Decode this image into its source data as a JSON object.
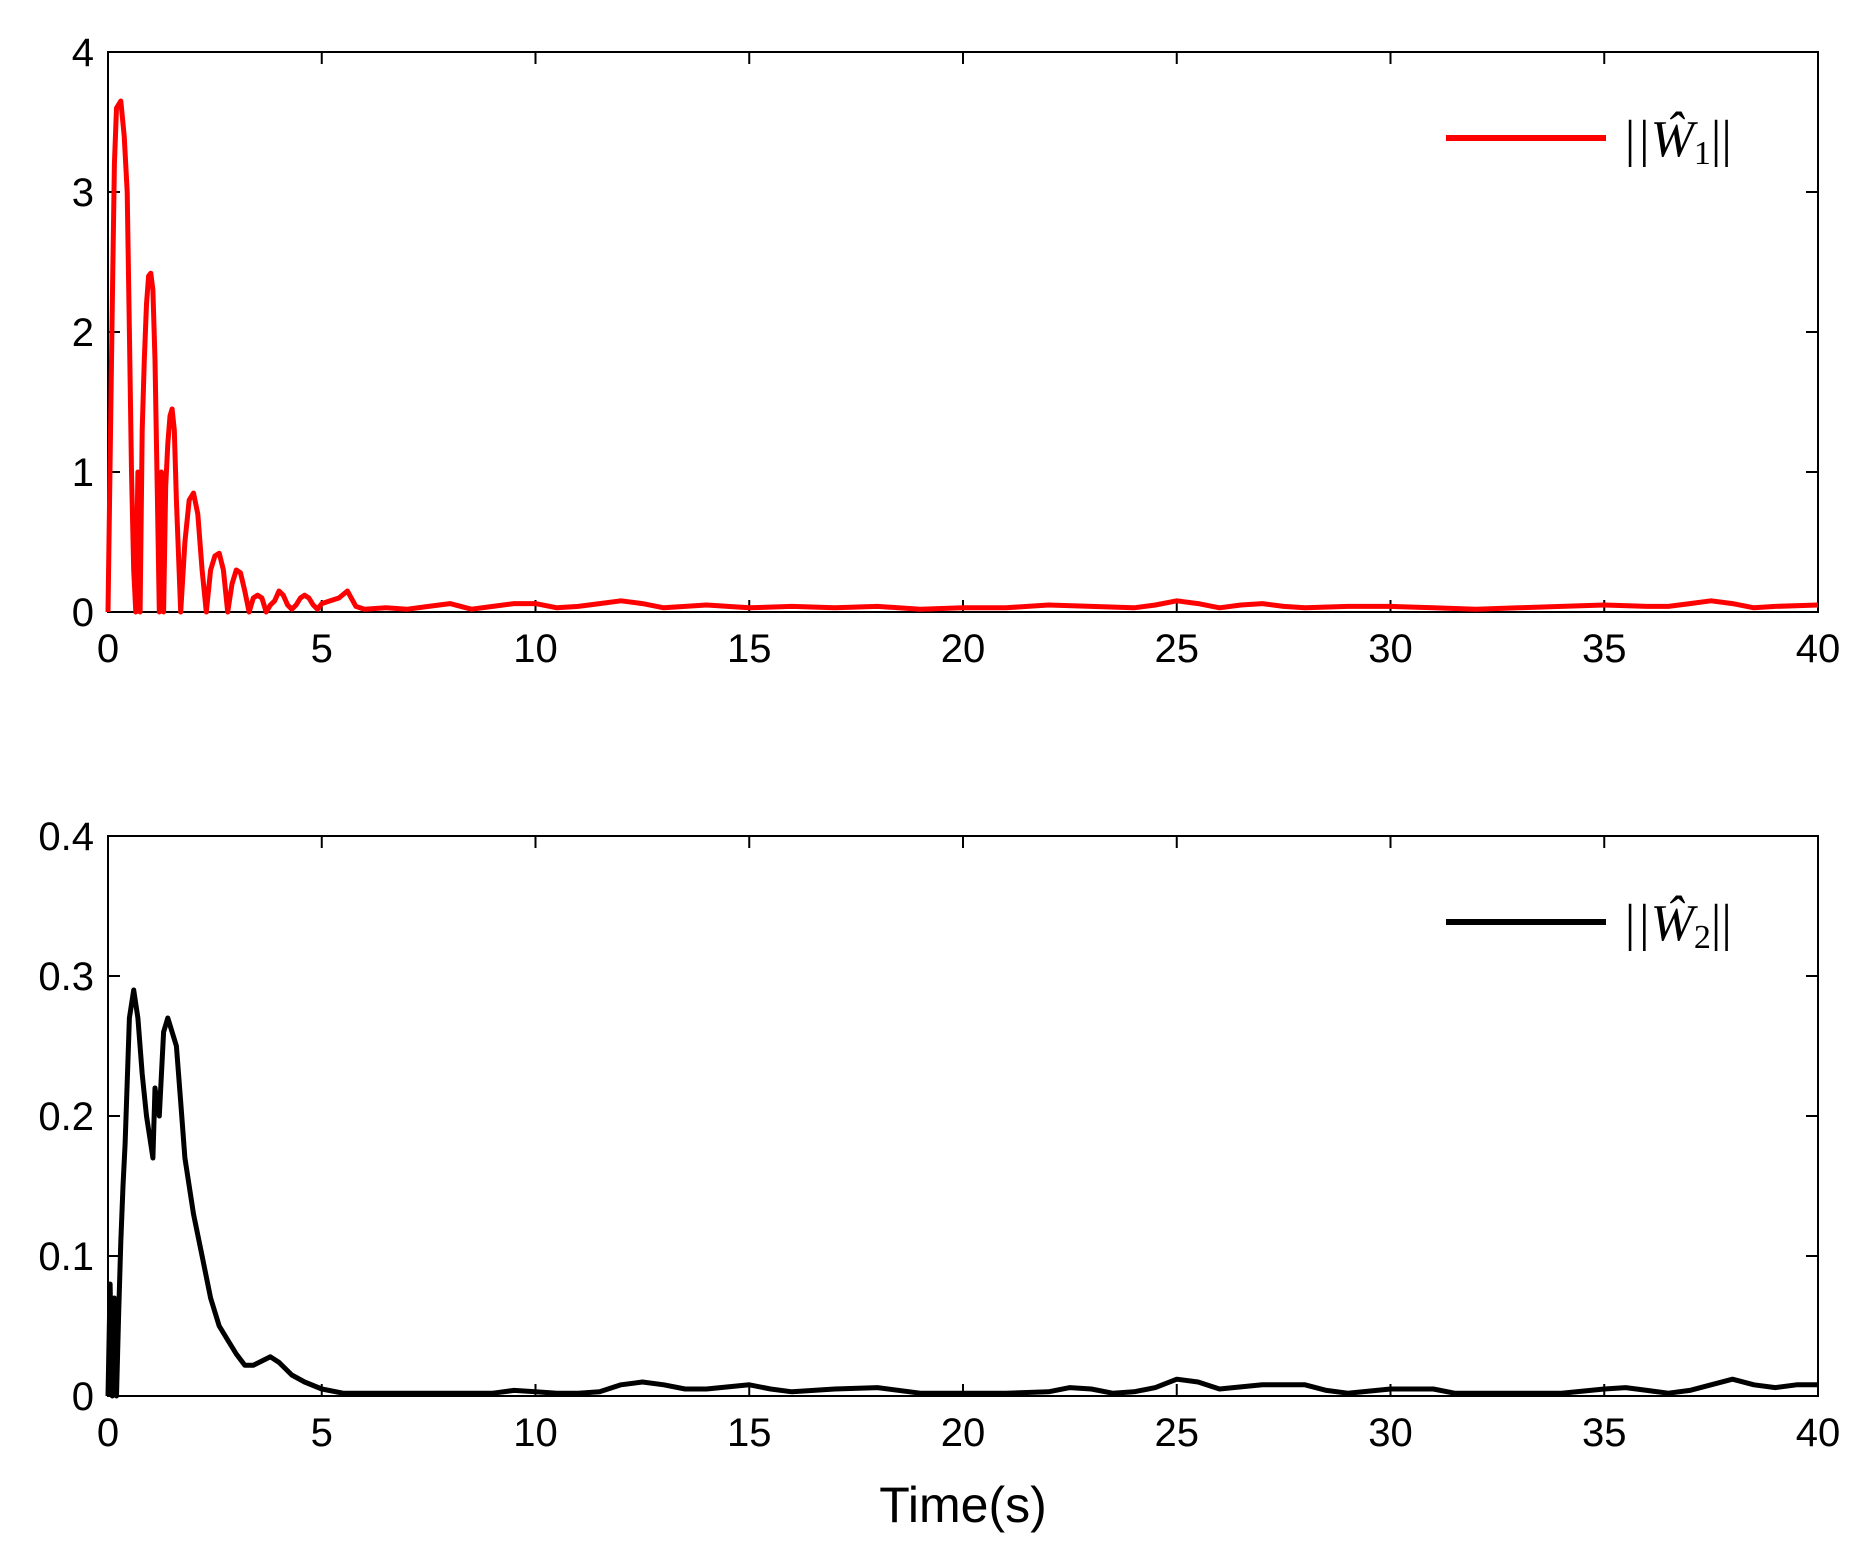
{
  "chart_data": [
    {
      "type": "line",
      "xlabel": "",
      "ylabel": "",
      "xlim": [
        0,
        40
      ],
      "ylim": [
        0,
        4
      ],
      "xticks": [
        0,
        5,
        10,
        15,
        20,
        25,
        30,
        35,
        40
      ],
      "xtick_labels": [
        "0",
        "5",
        "10",
        "15",
        "20",
        "25",
        "30",
        "35",
        "40"
      ],
      "yticks": [
        0,
        1,
        2,
        3,
        4
      ],
      "ytick_labels": [
        "0",
        "1",
        "2",
        "3",
        "4"
      ],
      "grid": false,
      "legend_position": "top-right",
      "series": [
        {
          "name": "||Ŵ1||",
          "legend_main": "||Ŵ",
          "legend_sub": "1",
          "legend_end": "||",
          "color": "#ff0000",
          "x": [
            0,
            0.1,
            0.15,
            0.2,
            0.3,
            0.38,
            0.45,
            0.5,
            0.55,
            0.6,
            0.65,
            0.7,
            0.75,
            0.8,
            0.85,
            0.9,
            0.95,
            1.0,
            1.05,
            1.1,
            1.15,
            1.2,
            1.25,
            1.3,
            1.35,
            1.4,
            1.45,
            1.5,
            1.55,
            1.6,
            1.7,
            1.8,
            1.9,
            2.0,
            2.1,
            2.2,
            2.3,
            2.4,
            2.5,
            2.6,
            2.7,
            2.8,
            2.9,
            3.0,
            3.1,
            3.2,
            3.3,
            3.4,
            3.5,
            3.6,
            3.7,
            3.8,
            3.9,
            4.0,
            4.1,
            4.2,
            4.3,
            4.4,
            4.5,
            4.6,
            4.7,
            4.8,
            4.9,
            5.0,
            5.2,
            5.4,
            5.6,
            5.8,
            6.0,
            6.5,
            7.0,
            7.5,
            8.0,
            8.5,
            9.0,
            9.5,
            10.0,
            10.5,
            11.0,
            11.5,
            12.0,
            12.5,
            13.0,
            13.5,
            14.0,
            14.5,
            15.0,
            16.0,
            17.0,
            18.0,
            19.0,
            20.0,
            21.0,
            22.0,
            23.0,
            24.0,
            24.5,
            25.0,
            25.5,
            26.0,
            26.5,
            27.0,
            27.5,
            28.0,
            29.0,
            30.0,
            31.0,
            32.0,
            33.0,
            34.0,
            35.0,
            36.0,
            36.5,
            37.0,
            37.5,
            38.0,
            38.5,
            39.0,
            40.0
          ],
          "y": [
            0,
            2.2,
            3.2,
            3.6,
            3.65,
            3.4,
            3.0,
            2.0,
            1.0,
            0.3,
            0.0,
            1.0,
            0.0,
            1.3,
            1.8,
            2.2,
            2.4,
            2.42,
            2.3,
            1.8,
            0.9,
            0.0,
            1.0,
            0.0,
            0.9,
            1.2,
            1.4,
            1.45,
            1.3,
            0.8,
            0.0,
            0.5,
            0.8,
            0.85,
            0.7,
            0.3,
            0.0,
            0.3,
            0.4,
            0.42,
            0.3,
            0.0,
            0.2,
            0.3,
            0.28,
            0.15,
            0.0,
            0.1,
            0.12,
            0.1,
            0.0,
            0.05,
            0.08,
            0.15,
            0.12,
            0.05,
            0.02,
            0.05,
            0.1,
            0.12,
            0.1,
            0.05,
            0.02,
            0.06,
            0.08,
            0.1,
            0.15,
            0.04,
            0.02,
            0.03,
            0.02,
            0.04,
            0.06,
            0.02,
            0.04,
            0.06,
            0.06,
            0.03,
            0.04,
            0.06,
            0.08,
            0.06,
            0.03,
            0.04,
            0.05,
            0.04,
            0.03,
            0.04,
            0.03,
            0.04,
            0.02,
            0.03,
            0.03,
            0.05,
            0.04,
            0.03,
            0.05,
            0.08,
            0.06,
            0.03,
            0.05,
            0.06,
            0.04,
            0.03,
            0.04,
            0.04,
            0.03,
            0.02,
            0.03,
            0.04,
            0.05,
            0.04,
            0.04,
            0.06,
            0.08,
            0.06,
            0.03,
            0.04,
            0.05
          ]
        }
      ]
    },
    {
      "type": "line",
      "xlabel": "Time(s)",
      "ylabel": "",
      "xlim": [
        0,
        40
      ],
      "ylim": [
        0,
        0.4
      ],
      "xticks": [
        0,
        5,
        10,
        15,
        20,
        25,
        30,
        35,
        40
      ],
      "xtick_labels": [
        "0",
        "5",
        "10",
        "15",
        "20",
        "25",
        "30",
        "35",
        "40"
      ],
      "yticks": [
        0,
        0.1,
        0.2,
        0.3,
        0.4
      ],
      "ytick_labels": [
        "0",
        "0.1",
        "0.2",
        "0.3",
        "0.4"
      ],
      "grid": false,
      "legend_position": "top-right",
      "series": [
        {
          "name": "||Ŵ2||",
          "legend_main": "||Ŵ",
          "legend_sub": "2",
          "legend_end": "||",
          "color": "#000000",
          "x": [
            0,
            0.05,
            0.1,
            0.15,
            0.2,
            0.25,
            0.3,
            0.35,
            0.4,
            0.5,
            0.6,
            0.7,
            0.8,
            0.9,
            1.0,
            1.05,
            1.1,
            1.2,
            1.3,
            1.4,
            1.5,
            1.6,
            1.7,
            1.8,
            2.0,
            2.2,
            2.4,
            2.6,
            2.8,
            3.0,
            3.2,
            3.4,
            3.6,
            3.8,
            4.0,
            4.3,
            4.6,
            5.0,
            5.5,
            6.0,
            7.0,
            8.0,
            9.0,
            9.5,
            10.0,
            10.5,
            11.0,
            11.5,
            12.0,
            12.5,
            13.0,
            13.5,
            14.0,
            15.0,
            15.5,
            16.0,
            17.0,
            18.0,
            19.0,
            20.0,
            21.0,
            22.0,
            22.5,
            23.0,
            23.5,
            24.0,
            24.5,
            25.0,
            25.5,
            26.0,
            27.0,
            28.0,
            28.5,
            29.0,
            30.0,
            31.0,
            31.5,
            32.0,
            33.0,
            34.0,
            35.0,
            35.5,
            36.0,
            36.5,
            37.0,
            37.5,
            38.0,
            38.5,
            39.0,
            39.5,
            40.0
          ],
          "y": [
            0,
            0.08,
            0.0,
            0.07,
            0.0,
            0.06,
            0.11,
            0.15,
            0.18,
            0.27,
            0.29,
            0.27,
            0.23,
            0.2,
            0.18,
            0.17,
            0.22,
            0.2,
            0.26,
            0.27,
            0.26,
            0.25,
            0.21,
            0.17,
            0.13,
            0.1,
            0.07,
            0.05,
            0.04,
            0.03,
            0.022,
            0.022,
            0.025,
            0.028,
            0.024,
            0.015,
            0.01,
            0.005,
            0.002,
            0.002,
            0.002,
            0.002,
            0.002,
            0.004,
            0.003,
            0.002,
            0.002,
            0.003,
            0.008,
            0.01,
            0.008,
            0.005,
            0.005,
            0.008,
            0.005,
            0.003,
            0.005,
            0.006,
            0.002,
            0.002,
            0.002,
            0.003,
            0.006,
            0.005,
            0.002,
            0.003,
            0.006,
            0.012,
            0.01,
            0.005,
            0.008,
            0.008,
            0.004,
            0.002,
            0.005,
            0.005,
            0.002,
            0.002,
            0.002,
            0.002,
            0.005,
            0.006,
            0.004,
            0.002,
            0.004,
            0.008,
            0.012,
            0.008,
            0.006,
            0.008,
            0.008
          ]
        }
      ]
    }
  ]
}
